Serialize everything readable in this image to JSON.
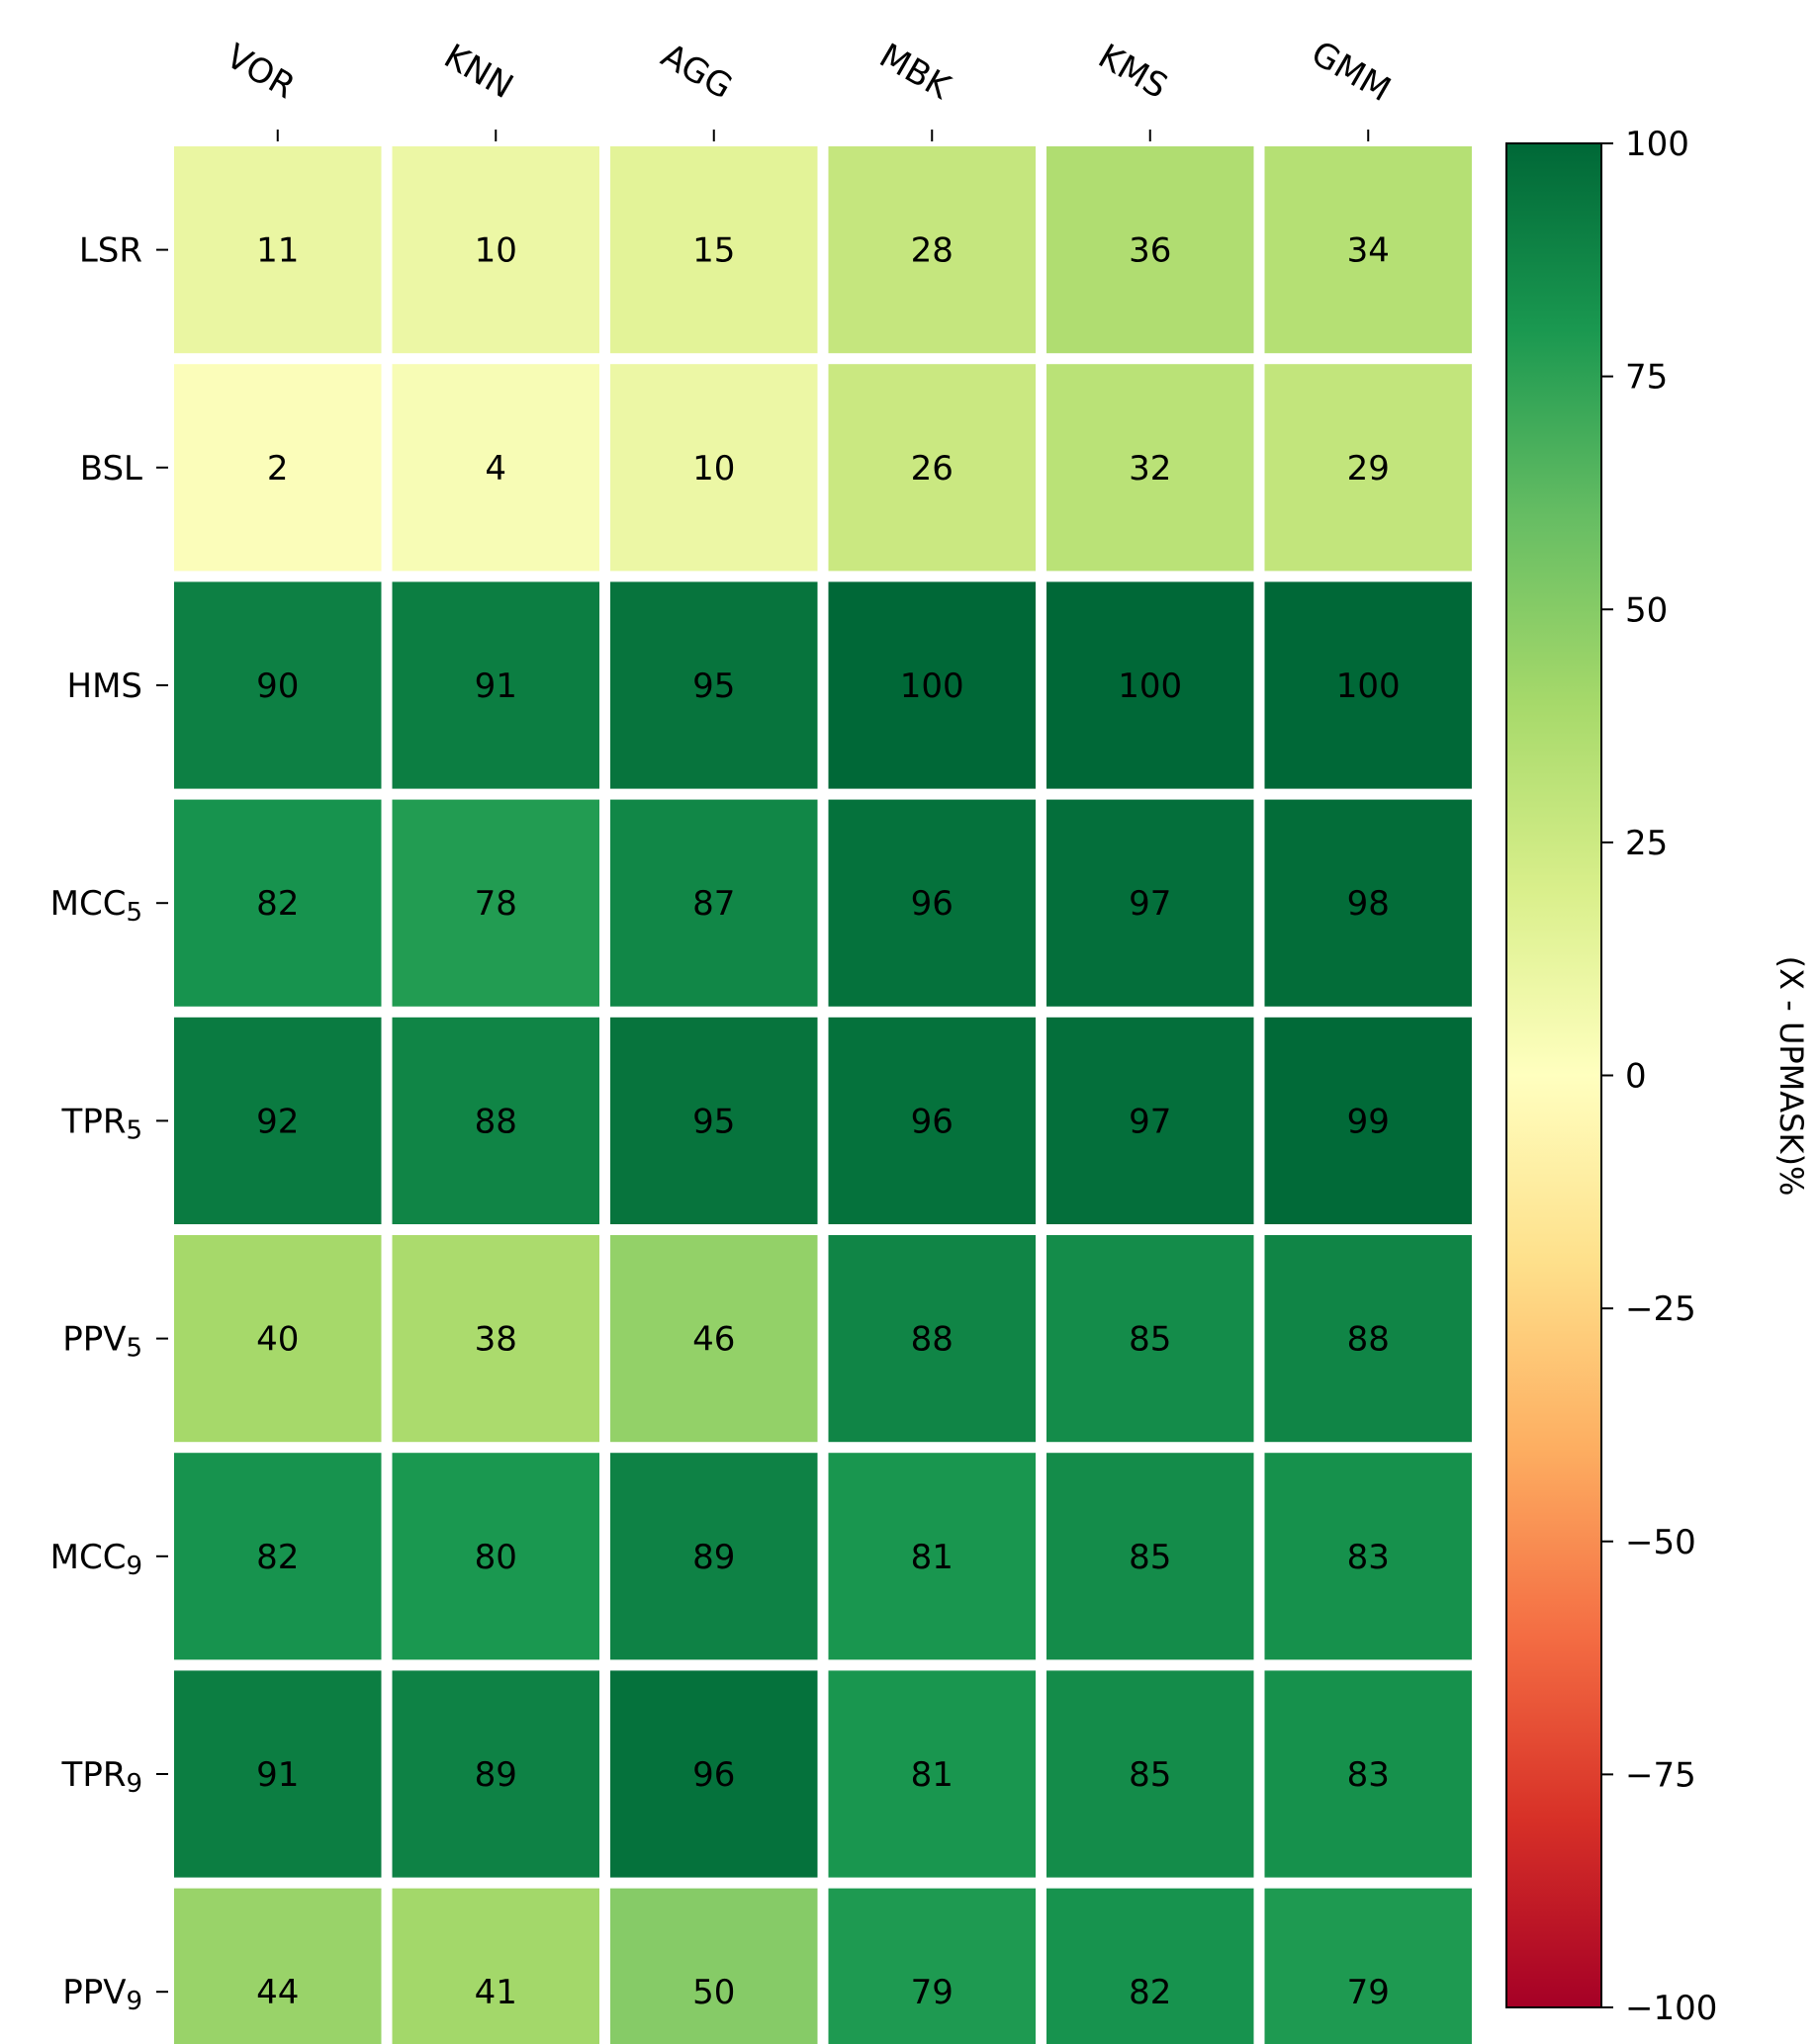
{
  "chart_data": {
    "type": "heatmap",
    "title": "",
    "x_categories": [
      "VOR",
      "KNN",
      "AGG",
      "MBK",
      "KMS",
      "GMM"
    ],
    "y_categories": [
      {
        "base": "LSR",
        "sub": ""
      },
      {
        "base": "BSL",
        "sub": ""
      },
      {
        "base": "HMS",
        "sub": ""
      },
      {
        "base": "MCC",
        "sub": "5"
      },
      {
        "base": "TPR",
        "sub": "5"
      },
      {
        "base": "PPV",
        "sub": "5"
      },
      {
        "base": "MCC",
        "sub": "9"
      },
      {
        "base": "TPR",
        "sub": "9"
      },
      {
        "base": "PPV",
        "sub": "9"
      }
    ],
    "values": [
      [
        11,
        10,
        15,
        28,
        36,
        34
      ],
      [
        2,
        4,
        10,
        26,
        32,
        29
      ],
      [
        90,
        91,
        95,
        100,
        100,
        100
      ],
      [
        82,
        78,
        87,
        96,
        97,
        98
      ],
      [
        92,
        88,
        95,
        96,
        97,
        99
      ],
      [
        40,
        38,
        46,
        88,
        85,
        88
      ],
      [
        82,
        80,
        89,
        81,
        85,
        83
      ],
      [
        91,
        89,
        96,
        81,
        85,
        83
      ],
      [
        44,
        41,
        50,
        79,
        82,
        79
      ]
    ],
    "colorbar": {
      "label": "(X - UPMASK)%",
      "range": [
        -100,
        100
      ],
      "ticks": [
        100,
        75,
        50,
        25,
        0,
        -25,
        -50,
        -75,
        -100
      ],
      "tick_labels": [
        "100",
        "75",
        "50",
        "25",
        "0",
        "−25",
        "−50",
        "−75",
        "−100"
      ],
      "colormap": "RdYlGn",
      "colormap_stops": [
        "#a50026",
        "#d73027",
        "#f46d43",
        "#fdae61",
        "#fee08b",
        "#ffffbf",
        "#d9ef8b",
        "#a6d96a",
        "#66bd63",
        "#1a9850",
        "#006837"
      ]
    },
    "x_axis_position": "top",
    "x_tick_rotation_deg": 30,
    "grid": false
  }
}
